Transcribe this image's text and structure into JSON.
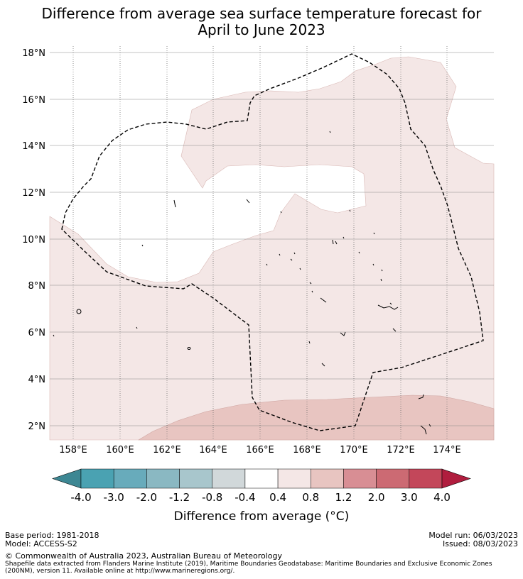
{
  "title_line1": "Difference from average sea surface temperature forecast for",
  "title_line2": "April to June 2023",
  "lat_ticks": [
    "18°N",
    "16°N",
    "14°N",
    "12°N",
    "10°N",
    "8°N",
    "6°N",
    "4°N",
    "2°N"
  ],
  "lon_ticks": [
    "158°E",
    "160°E",
    "162°E",
    "164°E",
    "166°E",
    "168°E",
    "170°E",
    "172°E",
    "174°E"
  ],
  "colorbar": {
    "labels": [
      "-4.0",
      "-3.0",
      "-2.0",
      "-1.2",
      "-0.8",
      "-0.4",
      "0.4",
      "0.8",
      "1.2",
      "2.0",
      "3.0",
      "4.0"
    ],
    "colors": [
      "#4aa2b2",
      "#68abbb",
      "#8ab8c2",
      "#a8c6cc",
      "#d1d8da",
      "#ffffff",
      "#f4e7e6",
      "#e8c5c1",
      "#d88e94",
      "#cc6a73",
      "#c3475a"
    ],
    "under_color": "#3d8793",
    "over_color": "#b01d3e",
    "label_text": "Difference from average (°C)"
  },
  "fills": {
    "light_pink": "#f4e7e6",
    "medium_pink": "#e8c5c1"
  },
  "footer": {
    "base_period": "Base period: 1981-2018",
    "model": "Model: ACCESS-S2",
    "model_run": "Model run: 06/03/2023",
    "issued": "Issued: 08/03/2023",
    "copyright": "© Commonwealth of Australia 2023, Australian Bureau of Meteorology",
    "shapefile1": "Shapefile data extracted from Flanders Marine Institute (2019), Maritime Boundaries Geodatabase: Maritime Boundaries and Exclusive Economic Zones",
    "shapefile2": "(200NM), version 11. Available online at http://www.marineregions.org/."
  }
}
